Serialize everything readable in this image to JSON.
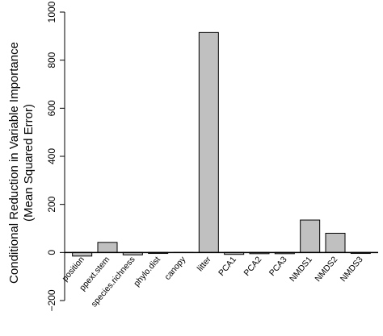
{
  "chart_data": {
    "type": "bar",
    "title": "",
    "xlabel": "",
    "ylabel_lines": [
      "Conditional Reduction in Variable Importance",
      "(Mean Squared Error)"
    ],
    "categories": [
      "position",
      "ppext.stem",
      "species.richness",
      "phylo.dist",
      "canopy",
      "litter",
      "PCA1",
      "PCA2",
      "PCA3",
      "NMDS1",
      "NMDS2",
      "NMDS3"
    ],
    "values": [
      -15,
      42,
      -10,
      -4,
      0,
      915,
      -8,
      -5,
      -5,
      135,
      80,
      -4
    ],
    "ylim": [
      -200,
      1000
    ],
    "yticks": [
      -200,
      0,
      200,
      400,
      600,
      800,
      1000
    ],
    "ytick_labels": [
      "−200",
      "0",
      "200",
      "400",
      "600",
      "800",
      "1000"
    ],
    "grid": false,
    "bar_fill": "#c0c0c0",
    "bar_stroke": "#000000",
    "zero_line_color": "#000000"
  }
}
